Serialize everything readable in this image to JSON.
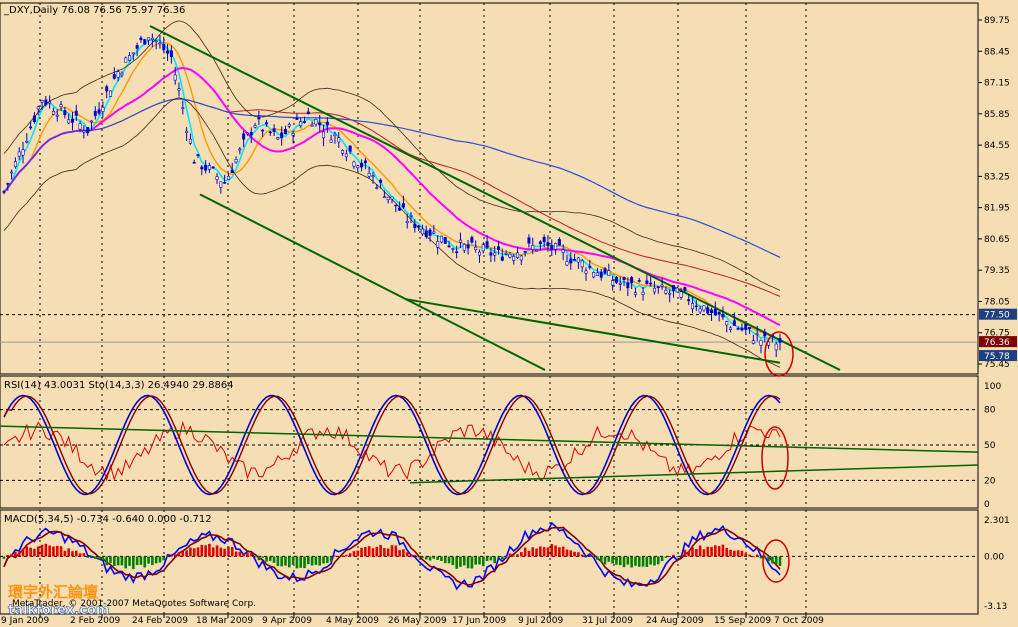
{
  "header": {
    "symbol": "_DXY,Daily",
    "ohlc": "76.08 76.56 75.97 76.36"
  },
  "indicators": {
    "rsi_label": "RSI(14) 43.0031 Sto(14,3,3) 26.4940 29.8864",
    "macd_label": "MACD(5,34,5) -0.734 -0.640 0.000 -0.712"
  },
  "price_axis": [
    "89.75",
    "88.45",
    "87.15",
    "85.85",
    "84.55",
    "83.25",
    "81.95",
    "80.65",
    "79.35",
    "78.05",
    "76.75",
    "75.45"
  ],
  "price_tags": [
    {
      "text": "77.50",
      "bg": "#1f3f7f",
      "fg": "#ffffff"
    },
    {
      "text": "76.36",
      "bg": "#7f0000",
      "fg": "#ffffff"
    },
    {
      "text": "75.78",
      "bg": "#1f3f7f",
      "fg": "#ffffff"
    }
  ],
  "rsi_axis": [
    "100",
    "80",
    "50",
    "20",
    "0"
  ],
  "macd_axis": [
    "2.301",
    "0.00",
    "-3.13"
  ],
  "date_axis": [
    "9 Jan 2009",
    "2 Feb 2009",
    "24 Feb 2009",
    "18 Mar 2009",
    "9 Apr 2009",
    "4 May 2009",
    "26 May 2009",
    "17 Jun 2009",
    "9 Jul 2009",
    "31 Jul 2009",
    "24 Aug 2009",
    "15 Sep 2009",
    "7 Oct 2009"
  ],
  "watermark": {
    "chinese": "環宇外汇論壇",
    "site": "talkforex.com",
    "copyright": "MetaTrader, © 2001-2007 MetaQuotes Software Corp."
  },
  "colors": {
    "background": "#f5deb3",
    "up_candle": "#0000cc",
    "down_candle": "#0000cc",
    "channel": "#006400",
    "ma_fast": "#00e5ff",
    "ma_orange": "#ff9900",
    "ma_magenta": "#ff00ff",
    "ma_blue": "#2a4bd7",
    "ma_red": "#b22222",
    "rsi": "#e00000",
    "stoch_main": "#0000cc",
    "stoch_signal": "#7f0000",
    "circle": "#cc0000"
  },
  "chart_data": [
    {
      "type": "candlestick",
      "title": "_DXY,Daily",
      "x": [
        "9 Jan 2009",
        "2 Feb 2009",
        "24 Feb 2009",
        "18 Mar 2009",
        "9 Apr 2009",
        "4 May 2009",
        "26 May 2009",
        "17 Jun 2009",
        "9 Jul 2009",
        "31 Jul 2009",
        "24 Aug 2009",
        "15 Sep 2009",
        "7 Oct 2009"
      ],
      "y_approx": [
        84.0,
        86.5,
        89.2,
        83.0,
        85.8,
        83.8,
        80.0,
        80.2,
        80.0,
        78.4,
        78.0,
        76.6,
        76.36
      ],
      "ylim": [
        75.45,
        89.75
      ],
      "last": {
        "open": 76.08,
        "high": 76.56,
        "low": 75.97,
        "close": 76.36
      }
    },
    {
      "type": "line",
      "title": "RSI(14) / Sto(14,3,3)",
      "values": {
        "rsi": 43.0031,
        "sto_main": 26.494,
        "sto_signal": 29.8864
      },
      "levels": [
        80,
        50,
        20
      ],
      "ylim": [
        0,
        100
      ]
    },
    {
      "type": "bar",
      "title": "MACD(5,34,5)",
      "values": [
        -0.734,
        -0.64,
        0.0,
        -0.712
      ],
      "ylim": [
        -3.13,
        2.301
      ]
    }
  ]
}
